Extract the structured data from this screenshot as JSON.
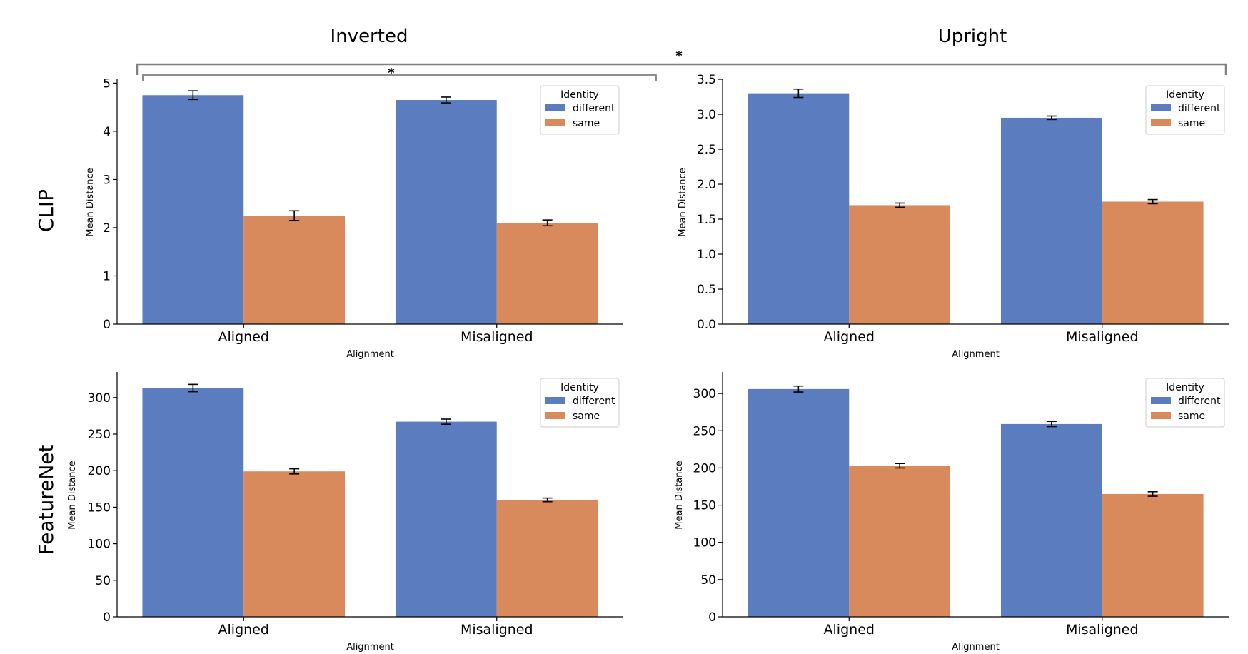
{
  "column_titles": [
    "Inverted",
    "Upright"
  ],
  "row_titles": [
    "CLIP",
    "FeatureNet"
  ],
  "colors": {
    "different": "#5b7dbf",
    "same": "#d98a5d",
    "bracket": "#808080"
  },
  "significance": {
    "outer_label": "*",
    "inner_label": "*"
  },
  "chart_data": [
    {
      "type": "bar",
      "row": "CLIP",
      "column": "Inverted",
      "categories": [
        "Aligned",
        "Misaligned"
      ],
      "xlabel": "Alignment",
      "ylabel": "Mean Distance",
      "ylim": [
        0,
        5.05
      ],
      "yticks": [
        0,
        1,
        2,
        3,
        4,
        5
      ],
      "legend": {
        "title": "Identity",
        "placement": "upper-right"
      },
      "series": [
        {
          "name": "different",
          "values": [
            4.75,
            4.65
          ],
          "errors": [
            0.09,
            0.06
          ]
        },
        {
          "name": "same",
          "values": [
            2.25,
            2.1
          ],
          "errors": [
            0.1,
            0.06
          ]
        }
      ]
    },
    {
      "type": "bar",
      "row": "CLIP",
      "column": "Upright",
      "categories": [
        "Aligned",
        "Misaligned"
      ],
      "xlabel": "Alignment",
      "ylabel": "Mean Distance",
      "ylim": [
        0,
        3.48
      ],
      "yticks": [
        0.0,
        0.5,
        1.0,
        1.5,
        2.0,
        2.5,
        3.0,
        3.5
      ],
      "legend": {
        "title": "Identity",
        "placement": "upper-right"
      },
      "series": [
        {
          "name": "different",
          "values": [
            3.3,
            2.95
          ],
          "errors": [
            0.06,
            0.025
          ]
        },
        {
          "name": "same",
          "values": [
            1.7,
            1.75
          ],
          "errors": [
            0.03,
            0.03
          ]
        }
      ]
    },
    {
      "type": "bar",
      "row": "FeatureNet",
      "column": "Inverted",
      "categories": [
        "Aligned",
        "Misaligned"
      ],
      "xlabel": "Alignment",
      "ylabel": "Mean Distance",
      "ylim": [
        0,
        333
      ],
      "yticks": [
        0,
        50,
        100,
        150,
        200,
        250,
        300
      ],
      "legend": {
        "title": "Identity",
        "placement": "upper-right"
      },
      "series": [
        {
          "name": "different",
          "values": [
            313,
            267
          ],
          "errors": [
            5,
            3.5
          ]
        },
        {
          "name": "same",
          "values": [
            199,
            160
          ],
          "errors": [
            3.5,
            2.5
          ]
        }
      ]
    },
    {
      "type": "bar",
      "row": "FeatureNet",
      "column": "Upright",
      "categories": [
        "Aligned",
        "Misaligned"
      ],
      "xlabel": "Alignment",
      "ylabel": "Mean Distance",
      "ylim": [
        0,
        327
      ],
      "yticks": [
        0,
        50,
        100,
        150,
        200,
        250,
        300
      ],
      "legend": {
        "title": "Identity",
        "placement": "upper-right"
      },
      "series": [
        {
          "name": "different",
          "values": [
            306,
            259
          ],
          "errors": [
            4,
            3.5
          ]
        },
        {
          "name": "same",
          "values": [
            203,
            165
          ],
          "errors": [
            3,
            3
          ]
        }
      ]
    }
  ]
}
